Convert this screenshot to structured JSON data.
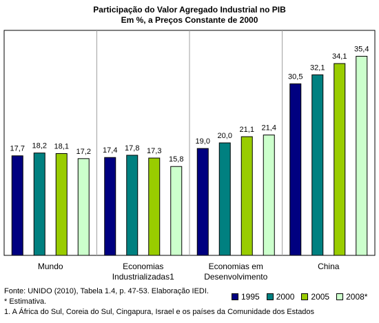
{
  "chart_data": {
    "type": "bar",
    "title": "Participação do Valor Agregado Industrial no PIB",
    "subtitle": "Em %, a Preços Constante de 2000",
    "categories": [
      [
        "Mundo"
      ],
      [
        "Economias",
        "Industrializadas1"
      ],
      [
        "Economias em",
        "Desenvolvimento"
      ],
      [
        "China"
      ]
    ],
    "series": [
      {
        "name": "1995",
        "color": "#000080",
        "values": [
          17.7,
          17.4,
          19.0,
          30.5
        ],
        "labels": [
          "17,7",
          "17,4",
          "19,0",
          "30,5"
        ]
      },
      {
        "name": "2000",
        "color": "#008080",
        "values": [
          18.2,
          17.8,
          20.0,
          32.1
        ],
        "labels": [
          "18,2",
          "17,8",
          "20,0",
          "32,1"
        ]
      },
      {
        "name": "2005",
        "color": "#99CC00",
        "values": [
          18.1,
          17.3,
          21.1,
          34.1
        ],
        "labels": [
          "18,1",
          "17,3",
          "21,1",
          "34,1"
        ]
      },
      {
        "name": "2008*",
        "color": "#CCFFCC",
        "values": [
          17.2,
          15.8,
          21.4,
          35.4
        ],
        "labels": [
          "17,2",
          "15,8",
          "21,4",
          "35,4"
        ]
      }
    ],
    "ylim": [
      0,
      40
    ],
    "grid": false,
    "legend": "bottom-right"
  },
  "footer": {
    "source": "Fonte: UNIDO (2010), Tabela 1.4, p. 47-53. Elaboração IEDI.",
    "note": "* Estimativa.",
    "footnote": "1. A África do Sul, Coreia do Sul, Cingapura, Israel e os países da Comunidade dos Estados"
  }
}
